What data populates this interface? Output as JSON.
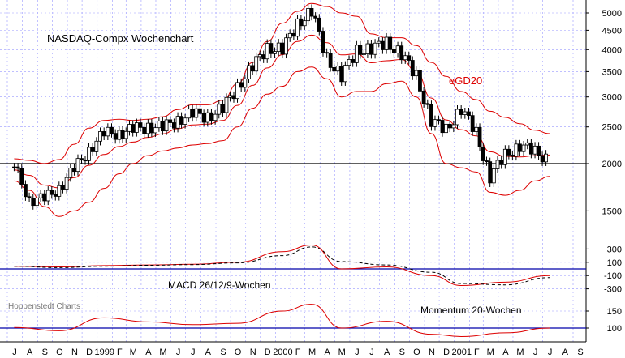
{
  "chart_data": [
    {
      "type": "candlestick",
      "title": "NASDAQ-Compx Wochenchart",
      "scale": "log",
      "y_ticks": [
        1500,
        2000,
        2500,
        3000,
        3500,
        4000,
        4500,
        5000
      ],
      "reference_lines": [
        2000
      ],
      "overlay_label": "eGD20",
      "series": [
        {
          "name": "close",
          "x": [
            "1998-07",
            "1998-08",
            "1998-09",
            "1998-10",
            "1998-11",
            "1998-12",
            "1999-01",
            "1999-02",
            "1999-03",
            "1999-04",
            "1999-05",
            "1999-06",
            "1999-07",
            "1999-08",
            "1999-09",
            "1999-10",
            "1999-11",
            "1999-12",
            "2000-01",
            "2000-02",
            "2000-03",
            "2000-04",
            "2000-05",
            "2000-06",
            "2000-07",
            "2000-08",
            "2000-09",
            "2000-10",
            "2000-11",
            "2000-12",
            "2001-01",
            "2001-02",
            "2001-03",
            "2001-04",
            "2001-05",
            "2001-06",
            "2001-07"
          ],
          "values": [
            1960,
            1620,
            1600,
            1740,
            1920,
            2190,
            2390,
            2420,
            2450,
            2520,
            2480,
            2620,
            2700,
            2670,
            2790,
            3200,
            3600,
            4050,
            4000,
            4690,
            5050,
            3800,
            3400,
            3980,
            4020,
            4170,
            3900,
            3400,
            2600,
            2450,
            2800,
            2400,
            1850,
            2100,
            2240,
            2140,
            2060
          ]
        },
        {
          "name": "upper band",
          "x": [
            "1998-07",
            "1998-08",
            "1998-09",
            "1998-10",
            "1998-11",
            "1998-12",
            "1999-01",
            "1999-02",
            "1999-03",
            "1999-04",
            "1999-05",
            "1999-06",
            "1999-07",
            "1999-08",
            "1999-09",
            "1999-10",
            "1999-11",
            "1999-12",
            "2000-01",
            "2000-02",
            "2000-03",
            "2000-04",
            "2000-05",
            "2000-06",
            "2000-07",
            "2000-08",
            "2000-09",
            "2000-10",
            "2000-11",
            "2000-12",
            "2001-01",
            "2001-02",
            "2001-03",
            "2001-04",
            "2001-05",
            "2001-06",
            "2001-07"
          ],
          "values": [
            2060,
            2040,
            2000,
            2050,
            2250,
            2480,
            2600,
            2620,
            2600,
            2620,
            2660,
            2780,
            2860,
            2860,
            2940,
            3250,
            3700,
            4200,
            4700,
            5050,
            5300,
            5200,
            5000,
            4900,
            4400,
            4300,
            4300,
            4100,
            3700,
            3400,
            3100,
            2950,
            2750,
            2650,
            2550,
            2450,
            2400
          ]
        },
        {
          "name": "lower band",
          "x": [
            "1998-07",
            "1998-08",
            "1998-09",
            "1998-10",
            "1998-11",
            "1998-12",
            "1999-01",
            "1999-02",
            "1999-03",
            "1999-04",
            "1999-05",
            "1999-06",
            "1999-07",
            "1999-08",
            "1999-09",
            "1999-10",
            "1999-11",
            "1999-12",
            "2000-01",
            "2000-02",
            "2000-03",
            "2000-04",
            "2000-05",
            "2000-06",
            "2000-07",
            "2000-08",
            "2000-09",
            "2000-10",
            "2000-11",
            "2000-12",
            "2001-01",
            "2001-02",
            "2001-03",
            "2001-04",
            "2001-05",
            "2001-06",
            "2001-07"
          ],
          "values": [
            1800,
            1700,
            1540,
            1450,
            1500,
            1580,
            1720,
            1880,
            2000,
            2100,
            2160,
            2200,
            2240,
            2260,
            2300,
            2500,
            2800,
            3050,
            3200,
            3500,
            3600,
            3350,
            3000,
            3100,
            3100,
            3250,
            3300,
            3000,
            2400,
            2000,
            1950,
            1900,
            1680,
            1650,
            1700,
            1800,
            1850
          ]
        }
      ]
    },
    {
      "type": "line",
      "title": "MACD 26/12/9-Wochen",
      "y_ticks": [
        300,
        100,
        -100,
        -300
      ],
      "reference_lines": [
        0
      ],
      "series": [
        {
          "name": "MACD",
          "x": [
            "1998-07",
            "1998-10",
            "1999-01",
            "1999-04",
            "1999-07",
            "1999-10",
            "2000-01",
            "2000-03",
            "2000-05",
            "2000-08",
            "2000-11",
            "2001-01",
            "2001-04",
            "2001-07"
          ],
          "values": [
            40,
            30,
            50,
            60,
            70,
            100,
            260,
            360,
            0,
            30,
            -100,
            -250,
            -200,
            -100
          ]
        },
        {
          "name": "signal",
          "x": [
            "1998-07",
            "1998-10",
            "1999-01",
            "1999-04",
            "1999-07",
            "1999-10",
            "2000-01",
            "2000-03",
            "2000-05",
            "2000-08",
            "2000-11",
            "2001-01",
            "2001-04",
            "2001-07"
          ],
          "values": [
            40,
            20,
            40,
            55,
            65,
            90,
            200,
            330,
            110,
            60,
            -50,
            -220,
            -240,
            -130
          ]
        }
      ]
    },
    {
      "type": "line",
      "title": "Momentum 20-Wochen",
      "y_ticks": [
        150,
        100
      ],
      "reference_lines": [
        100
      ],
      "series": [
        {
          "name": "Momentum",
          "x": [
            "1998-07",
            "1998-10",
            "1999-01",
            "1999-04",
            "1999-07",
            "1999-10",
            "2000-01",
            "2000-03",
            "2000-05",
            "2000-08",
            "2000-11",
            "2001-01",
            "2001-04",
            "2001-07"
          ],
          "values": [
            102,
            92,
            130,
            118,
            110,
            114,
            150,
            170,
            100,
            120,
            82,
            75,
            86,
            100
          ]
        }
      ]
    }
  ],
  "source_label": "Hoppenstedt Charts",
  "x_axis_labels": [
    {
      "text": "J",
      "d": "1998-07-01"
    },
    {
      "text": "A",
      "d": "1998-08-01"
    },
    {
      "text": "S",
      "d": "1998-09-01"
    },
    {
      "text": "O",
      "d": "1998-10-01"
    },
    {
      "text": "N",
      "d": "1998-11-01"
    },
    {
      "text": "D",
      "d": "1998-12-01"
    },
    {
      "text": "1999",
      "d": "1999-01-01"
    },
    {
      "text": "F",
      "d": "1999-02-01"
    },
    {
      "text": "M",
      "d": "1999-03-01"
    },
    {
      "text": "A",
      "d": "1999-04-01"
    },
    {
      "text": "M",
      "d": "1999-05-01"
    },
    {
      "text": "J",
      "d": "1999-06-01"
    },
    {
      "text": "J",
      "d": "1999-07-01"
    },
    {
      "text": "A",
      "d": "1999-08-01"
    },
    {
      "text": "S",
      "d": "1999-09-01"
    },
    {
      "text": "O",
      "d": "1999-10-01"
    },
    {
      "text": "N",
      "d": "1999-11-01"
    },
    {
      "text": "D",
      "d": "1999-12-01"
    },
    {
      "text": "2000",
      "d": "2000-01-01"
    },
    {
      "text": "F",
      "d": "2000-02-01"
    },
    {
      "text": "M",
      "d": "2000-03-01"
    },
    {
      "text": "A",
      "d": "2000-04-01"
    },
    {
      "text": "M",
      "d": "2000-05-01"
    },
    {
      "text": "J",
      "d": "2000-06-01"
    },
    {
      "text": "J",
      "d": "2000-07-01"
    },
    {
      "text": "A",
      "d": "2000-08-01"
    },
    {
      "text": "S",
      "d": "2000-09-01"
    },
    {
      "text": "O",
      "d": "2000-10-01"
    },
    {
      "text": "N",
      "d": "2000-11-01"
    },
    {
      "text": "D",
      "d": "2000-12-01"
    },
    {
      "text": "2001",
      "d": "2001-01-01"
    },
    {
      "text": "F",
      "d": "2001-02-01"
    },
    {
      "text": "M",
      "d": "2001-03-01"
    },
    {
      "text": "A",
      "d": "2001-04-01"
    },
    {
      "text": "M",
      "d": "2001-05-01"
    },
    {
      "text": "J",
      "d": "2001-06-01"
    },
    {
      "text": "J",
      "d": "2001-07-01"
    },
    {
      "text": "A",
      "d": "2001-08-01"
    },
    {
      "text": "S",
      "d": "2001-09-01"
    }
  ],
  "colors": {
    "price": "#000000",
    "bands": "#dd0000",
    "grid": "#9999ff",
    "reference": "#000000",
    "momentum_ref": "#0000aa"
  }
}
